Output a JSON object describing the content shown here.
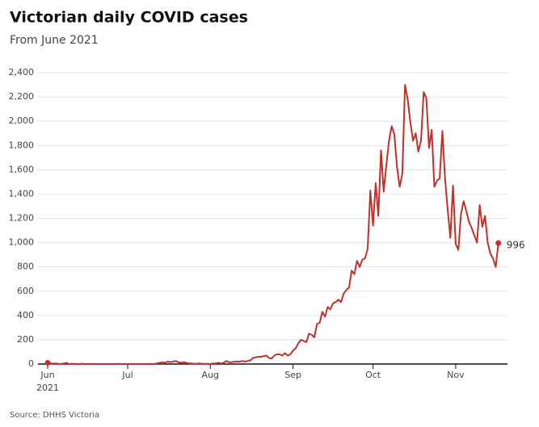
{
  "chart_data": {
    "type": "line",
    "title": "Victorian daily COVID cases",
    "subtitle": "From June 2021",
    "source": "Source: DHHS Victoria",
    "x_year_label": "2021",
    "color": "#c1312b",
    "end_markers": true,
    "grid": true,
    "ylim": [
      0,
      2400
    ],
    "yticks": [
      0,
      200,
      400,
      600,
      800,
      {
        "value": 1000,
        "label": "1,000"
      },
      {
        "value": 1200,
        "label": "1,200"
      },
      {
        "value": 1400,
        "label": "1,400"
      },
      {
        "value": 1600,
        "label": "1,600"
      },
      {
        "value": 1800,
        "label": "1,800"
      },
      {
        "value": 2000,
        "label": "2,000"
      },
      {
        "value": 2200,
        "label": "2,200"
      },
      {
        "value": 2400,
        "label": "2,400"
      }
    ],
    "categories": [
      "Jun",
      null,
      null,
      null,
      null,
      null,
      null,
      null,
      null,
      null,
      null,
      null,
      null,
      null,
      null,
      null,
      null,
      null,
      null,
      null,
      null,
      null,
      null,
      null,
      null,
      null,
      null,
      null,
      null,
      null,
      "Jul",
      null,
      null,
      null,
      null,
      null,
      null,
      null,
      null,
      null,
      null,
      null,
      null,
      null,
      null,
      null,
      null,
      null,
      null,
      null,
      null,
      null,
      null,
      null,
      null,
      null,
      null,
      null,
      null,
      null,
      null,
      "Aug",
      null,
      null,
      null,
      null,
      null,
      null,
      null,
      null,
      null,
      null,
      null,
      null,
      null,
      null,
      null,
      null,
      null,
      null,
      null,
      null,
      null,
      null,
      null,
      null,
      null,
      null,
      null,
      null,
      null,
      null,
      "Sep",
      null,
      null,
      null,
      null,
      null,
      null,
      null,
      null,
      null,
      null,
      null,
      null,
      null,
      null,
      null,
      null,
      null,
      null,
      null,
      null,
      null,
      null,
      null,
      null,
      null,
      null,
      null,
      null,
      null,
      "Oct",
      null,
      null,
      null,
      null,
      null,
      null,
      null,
      null,
      null,
      null,
      null,
      null,
      null,
      null,
      null,
      null,
      null,
      null,
      null,
      null,
      null,
      null,
      null,
      null,
      null,
      null,
      null,
      null,
      null,
      null,
      "Nov",
      null,
      null,
      null,
      null,
      null,
      null,
      null,
      null,
      null,
      null,
      null,
      null,
      null,
      null,
      null,
      null
    ],
    "values": [
      10,
      5,
      3,
      5,
      2,
      0,
      4,
      10,
      0,
      2,
      1,
      0,
      0,
      3,
      0,
      0,
      0,
      1,
      0,
      0,
      0,
      0,
      0,
      0,
      0,
      0,
      1,
      0,
      0,
      0,
      0,
      0,
      2,
      0,
      1,
      0,
      2,
      0,
      1,
      0,
      2,
      5,
      10,
      15,
      10,
      20,
      15,
      20,
      25,
      15,
      10,
      15,
      10,
      5,
      5,
      2,
      3,
      5,
      2,
      1,
      2,
      0,
      5,
      5,
      10,
      5,
      10,
      25,
      15,
      15,
      20,
      20,
      20,
      25,
      20,
      25,
      30,
      50,
      55,
      60,
      60,
      65,
      70,
      50,
      45,
      70,
      80,
      80,
      70,
      90,
      70,
      80,
      110,
      130,
      170,
      200,
      190,
      180,
      250,
      240,
      220,
      330,
      340,
      430,
      390,
      470,
      450,
      500,
      510,
      530,
      510,
      580,
      610,
      630,
      770,
      740,
      850,
      800,
      860,
      870,
      950,
      1430,
      1140,
      1490,
      1220,
      1760,
      1420,
      1640,
      1840,
      1960,
      1890,
      1620,
      1460,
      1570,
      2300,
      2180,
      1990,
      1840,
      1900,
      1750,
      1840,
      2240,
      2190,
      1780,
      1930,
      1460,
      1510,
      1530,
      1920,
      1530,
      1270,
      1040,
      1470,
      990,
      940,
      1240,
      1340,
      1260,
      1170,
      1120,
      1060,
      1000,
      1310,
      1130,
      1220,
      1000,
      910,
      870,
      800,
      996
    ]
  }
}
